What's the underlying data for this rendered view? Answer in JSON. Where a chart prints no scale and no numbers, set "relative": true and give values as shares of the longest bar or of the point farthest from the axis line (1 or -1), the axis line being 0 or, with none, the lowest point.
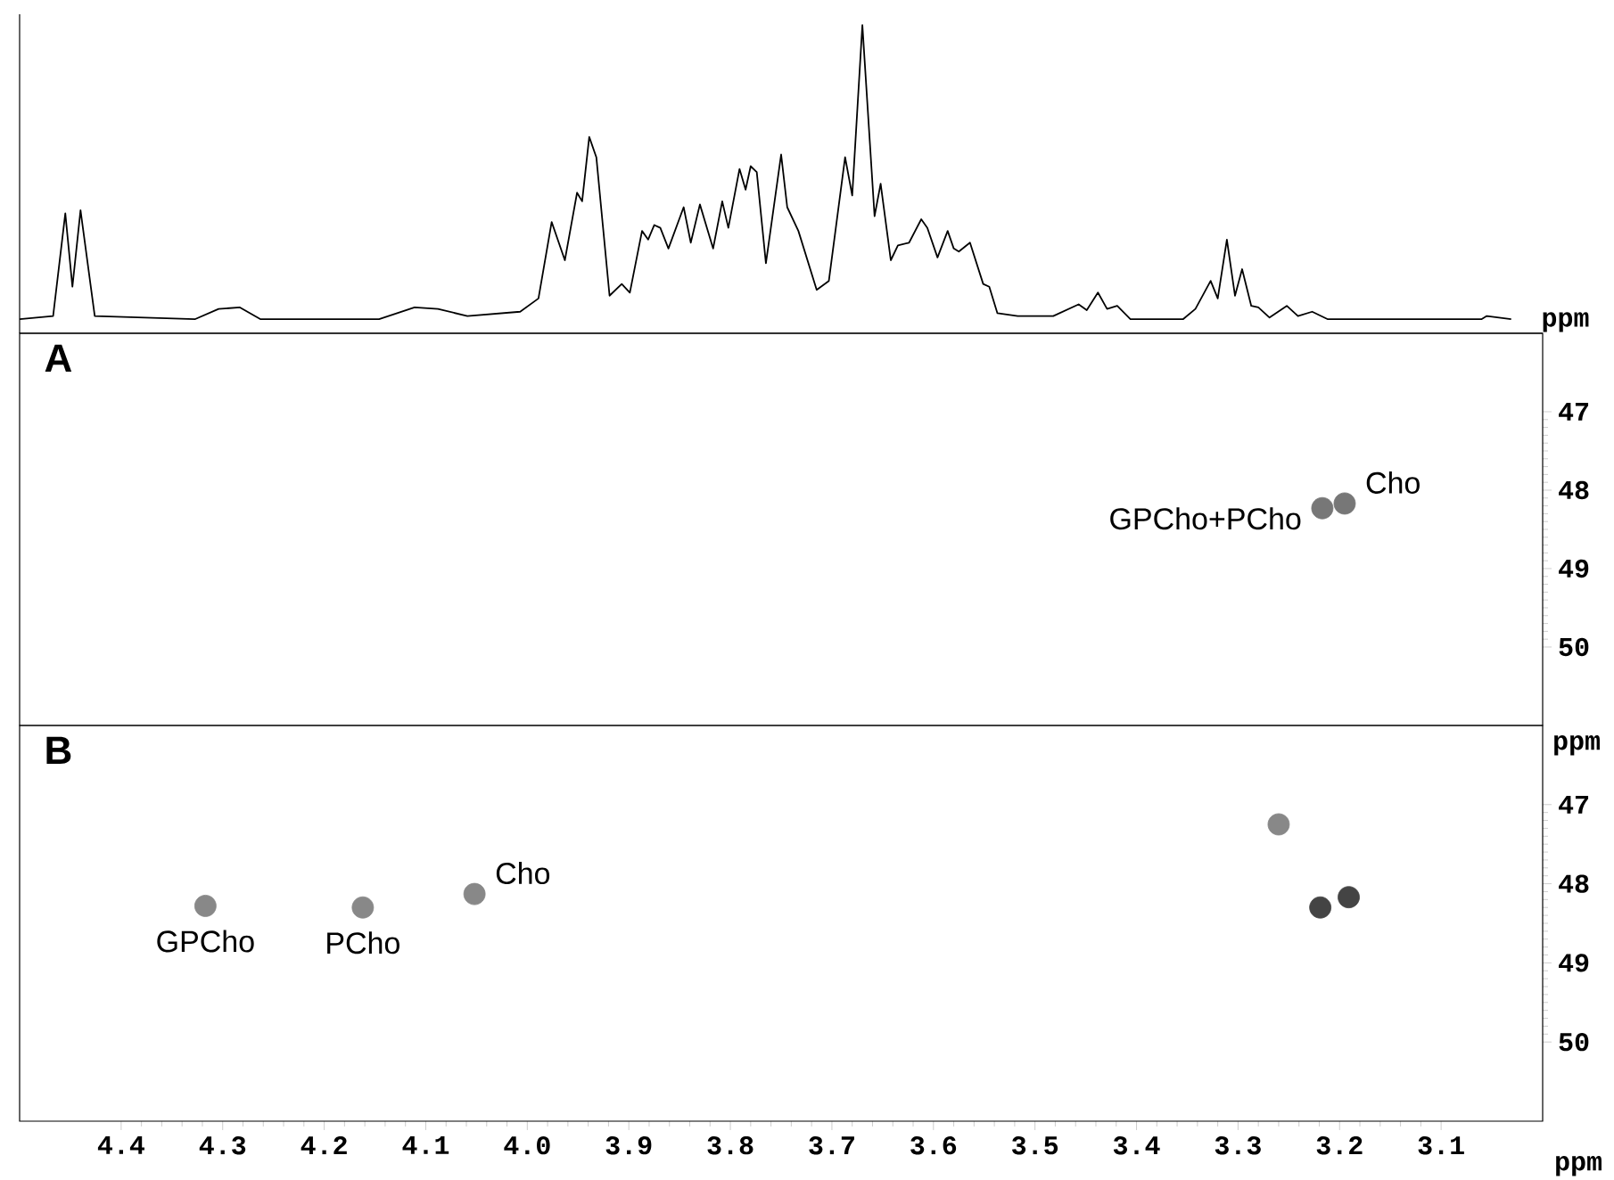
{
  "chart_data": [
    {
      "type": "line",
      "relative": true,
      "xlim": [
        4.5,
        3.0
      ],
      "tick_labels": false,
      "xlabel": "ppm",
      "marker": "none",
      "series": [
        {
          "color": "#000000",
          "x": [
            4.5,
            4.467,
            4.455,
            4.448,
            4.44,
            4.426,
            4.327,
            4.304,
            4.283,
            4.263,
            4.146,
            4.111,
            4.088,
            4.059,
            4.007,
            3.989,
            3.976,
            3.963,
            3.951,
            3.946,
            3.939,
            3.932,
            3.919,
            3.907,
            3.899,
            3.887,
            3.881,
            3.875,
            3.869,
            3.861,
            3.846,
            3.839,
            3.83,
            3.817,
            3.808,
            3.802,
            3.791,
            3.785,
            3.78,
            3.774,
            3.765,
            3.75,
            3.744,
            3.733,
            3.715,
            3.703,
            3.687,
            3.68,
            3.67,
            3.658,
            3.652,
            3.642,
            3.635,
            3.624,
            3.612,
            3.606,
            3.596,
            3.586,
            3.58,
            3.575,
            3.564,
            3.551,
            3.545,
            3.537,
            3.517,
            3.482,
            3.457,
            3.449,
            3.438,
            3.429,
            3.419,
            3.406,
            3.354,
            3.342,
            3.327,
            3.32,
            3.311,
            3.303,
            3.296,
            3.287,
            3.28,
            3.269,
            3.252,
            3.241,
            3.227,
            3.212,
            3.06,
            3.055,
            3.031
          ],
          "values": [
            0.046,
            0.056,
            0.389,
            0.151,
            0.399,
            0.056,
            0.046,
            0.079,
            0.084,
            0.046,
            0.046,
            0.084,
            0.079,
            0.056,
            0.07,
            0.113,
            0.361,
            0.237,
            0.456,
            0.428,
            0.637,
            0.571,
            0.122,
            0.16,
            0.132,
            0.332,
            0.304,
            0.351,
            0.342,
            0.275,
            0.409,
            0.294,
            0.418,
            0.275,
            0.428,
            0.342,
            0.533,
            0.466,
            0.542,
            0.523,
            0.227,
            0.58,
            0.409,
            0.332,
            0.141,
            0.17,
            0.571,
            0.447,
            1,
            0.38,
            0.485,
            0.237,
            0.285,
            0.294,
            0.37,
            0.342,
            0.246,
            0.332,
            0.275,
            0.265,
            0.294,
            0.16,
            0.151,
            0.065,
            0.056,
            0.056,
            0.094,
            0.075,
            0.132,
            0.079,
            0.089,
            0.046,
            0.046,
            0.079,
            0.17,
            0.113,
            0.304,
            0.122,
            0.208,
            0.089,
            0.084,
            0.051,
            0.089,
            0.056,
            0.07,
            0.046,
            0.046,
            0.056,
            0.046
          ]
        }
      ]
    },
    {
      "type": "scatter",
      "title": "A",
      "xlim": [
        4.5,
        3.0
      ],
      "ylim": [
        51,
        46
      ],
      "yticks": [
        47,
        48,
        49,
        50
      ],
      "tick_labels": "y",
      "marker": "circle",
      "series": [
        {
          "colors": [
            "#777777",
            "#777777"
          ],
          "x": [
            3.217,
            3.195
          ],
          "values": [
            48.23,
            48.17
          ]
        }
      ],
      "annotations": [
        {
          "text": "GPCho+PCho",
          "x": 3.217,
          "y": 48.23
        },
        {
          "text": "Cho",
          "x": 3.195,
          "y": 48.17
        }
      ]
    },
    {
      "type": "scatter",
      "title": "B",
      "xlim": [
        4.5,
        3.0
      ],
      "xticks": [
        4.4,
        4.3,
        4.2,
        4.1,
        {
          "value": 4.0,
          "label": "4.0"
        },
        3.9,
        3.8,
        3.7,
        3.6,
        3.5,
        3.4,
        3.3,
        3.2,
        3.1
      ],
      "ylim": [
        51,
        46
      ],
      "yticks": [
        47,
        48,
        49,
        50
      ],
      "xlabel": "ppm",
      "ylabel": "ppm",
      "marker": "circle",
      "series": [
        {
          "colors": [
            "#888888",
            "#888888",
            "#888888",
            "#888888",
            "#444444",
            "#444444"
          ],
          "x": [
            4.317,
            4.162,
            4.052,
            3.26,
            3.219,
            3.191
          ],
          "values": [
            48.28,
            48.3,
            48.13,
            47.25,
            48.3,
            48.17
          ]
        }
      ],
      "annotations": [
        {
          "text": "GPCho",
          "x": 4.317,
          "y": 48.28
        },
        {
          "text": "PCho",
          "x": 4.162,
          "y": 48.3
        },
        {
          "text": "Cho",
          "x": 4.052,
          "y": 48.13
        }
      ]
    }
  ]
}
